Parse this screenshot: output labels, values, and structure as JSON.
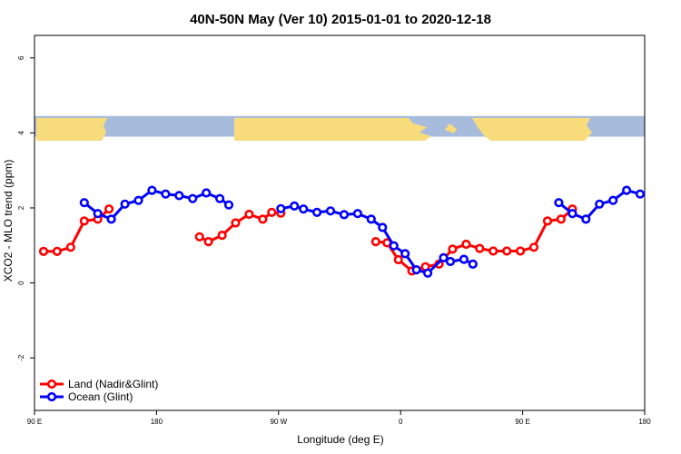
{
  "chart_data": {
    "type": "line",
    "title": "40N-50N May (Ver 10)   2015-01-01 to 2020-12-18",
    "xlabel": "Longitude (deg E)",
    "ylabel": "XCO2 - MLO trend (ppm)",
    "xlim": [
      -90,
      180
    ],
    "ylim": [
      -3.4,
      6.6
    ],
    "x_ticks": [
      {
        "value": -90,
        "label": "90 E"
      },
      {
        "value": -36,
        "label": "180"
      },
      {
        "value": 18,
        "label": "90 W"
      },
      {
        "value": 72,
        "label": "0"
      },
      {
        "value": 126,
        "label": "90 E"
      },
      {
        "value": 180,
        "label": "180"
      }
    ],
    "y_ticks": [
      {
        "value": -2,
        "label": "-2"
      },
      {
        "value": 0,
        "label": "0"
      },
      {
        "value": 2,
        "label": "2"
      },
      {
        "value": 4,
        "label": "4"
      },
      {
        "value": 6,
        "label": "6"
      }
    ],
    "map_band": {
      "y_from": 3.9,
      "y_to": 4.45,
      "ocean_color": "#a7bcdc",
      "land_color": "#f8dc7c"
    },
    "grid": false,
    "legend_position": "bottom-left",
    "series": [
      {
        "name": "Land (Nadir&Glint)",
        "color": "#ff0000",
        "segments": [
          [
            [
              -86,
              0.84
            ],
            [
              -80,
              0.84
            ],
            [
              -74,
              0.95
            ],
            [
              -68,
              1.65
            ],
            [
              -62,
              1.7
            ],
            [
              -57,
              1.97
            ]
          ],
          [
            [
              -17,
              1.23
            ],
            [
              -13,
              1.1
            ],
            [
              -7,
              1.27
            ],
            [
              -1,
              1.6
            ],
            [
              5,
              1.83
            ],
            [
              11,
              1.7
            ],
            [
              15,
              1.88
            ],
            [
              19,
              1.86
            ]
          ],
          [
            [
              61,
              1.1
            ],
            [
              66,
              1.07
            ],
            [
              71,
              0.62
            ],
            [
              77,
              0.32
            ],
            [
              83,
              0.43
            ],
            [
              89,
              0.5
            ],
            [
              95,
              0.9
            ],
            [
              101,
              1.03
            ],
            [
              107,
              0.92
            ],
            [
              113,
              0.85
            ],
            [
              119,
              0.85
            ],
            [
              125,
              0.85
            ],
            [
              131,
              0.95
            ],
            [
              137,
              1.65
            ],
            [
              143,
              1.7
            ],
            [
              148,
              1.97
            ]
          ]
        ]
      },
      {
        "name": "Ocean (Glint)",
        "color": "#0000ff",
        "segments": [
          [
            [
              -68,
              2.14
            ],
            [
              -62,
              1.85
            ],
            [
              -56,
              1.7
            ],
            [
              -50,
              2.1
            ],
            [
              -44,
              2.2
            ],
            [
              -38,
              2.47
            ],
            [
              -32,
              2.37
            ],
            [
              -26,
              2.33
            ],
            [
              -20,
              2.25
            ],
            [
              -14,
              2.4
            ],
            [
              -8,
              2.25
            ],
            [
              -4,
              2.08
            ]
          ],
          [
            [
              19,
              1.98
            ],
            [
              25,
              2.05
            ],
            [
              29,
              1.97
            ],
            [
              35,
              1.88
            ],
            [
              41,
              1.92
            ],
            [
              47,
              1.82
            ],
            [
              53,
              1.85
            ],
            [
              59,
              1.7
            ],
            [
              64,
              1.48
            ],
            [
              69,
              0.99
            ],
            [
              74,
              0.78
            ],
            [
              79,
              0.35
            ],
            [
              84,
              0.26
            ],
            [
              91,
              0.67
            ],
            [
              94,
              0.57
            ],
            [
              100,
              0.63
            ],
            [
              104,
              0.5
            ]
          ],
          [
            [
              142,
              2.14
            ],
            [
              148,
              1.85
            ],
            [
              154,
              1.7
            ],
            [
              160,
              2.1
            ],
            [
              166,
              2.2
            ],
            [
              172,
              2.47
            ],
            [
              178,
              2.37
            ]
          ]
        ]
      }
    ]
  }
}
